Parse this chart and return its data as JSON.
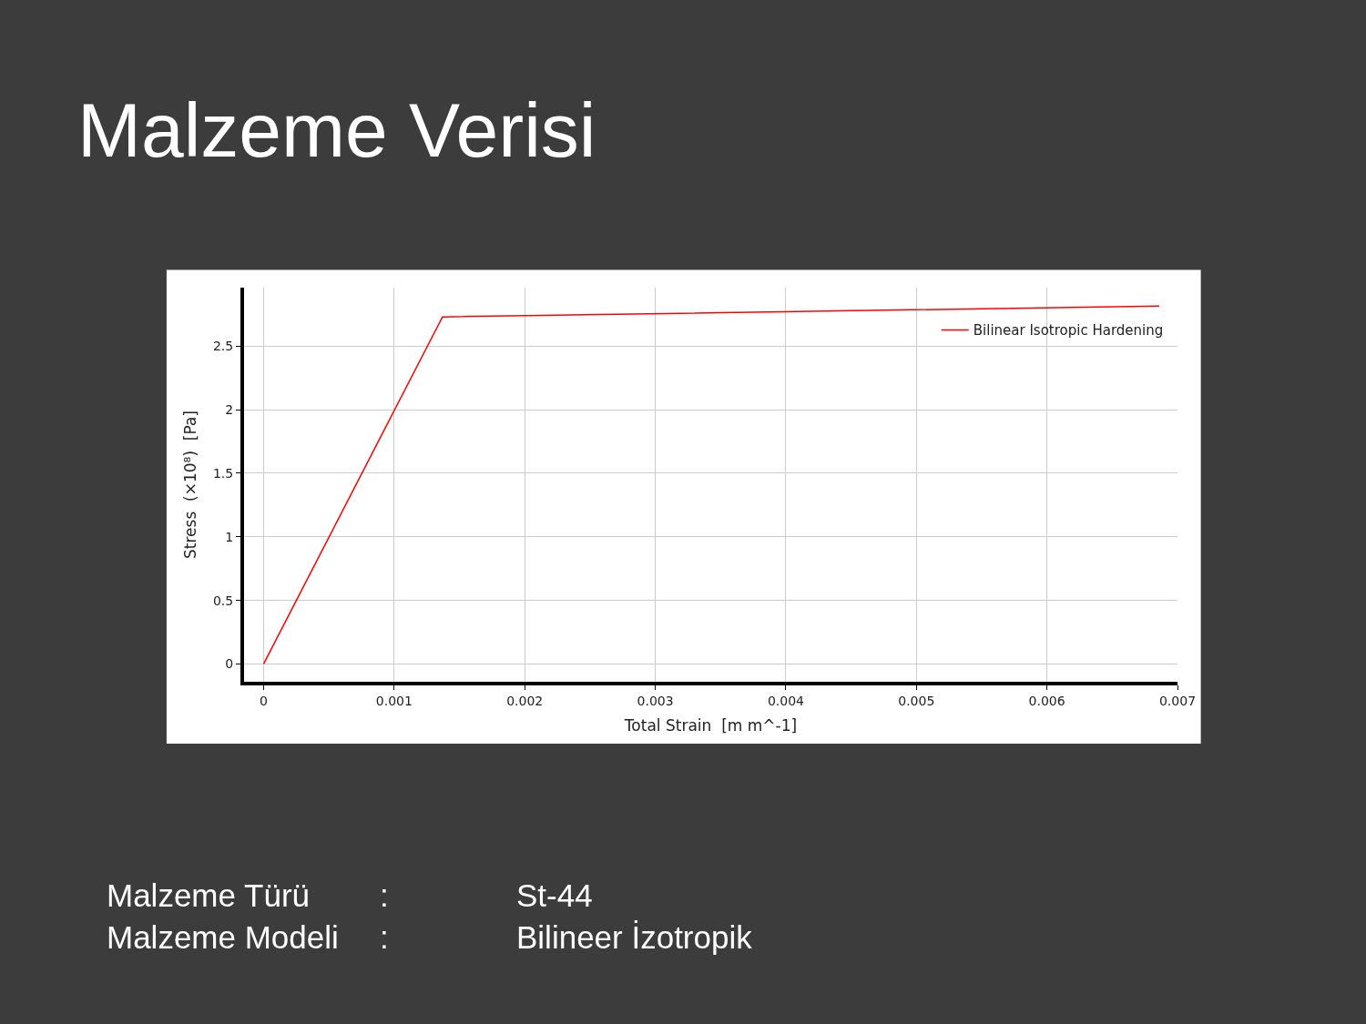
{
  "chart_data": {
    "type": "line",
    "title": "Malzeme Verisi",
    "xlabel": "Total Strain  [m m^-1]",
    "ylabel": "Stress  (×10⁸)  [Pa]",
    "series": [
      {
        "name": "Bilinear Isotropic Hardening",
        "color": "#ff0000",
        "x": [
          0,
          0.00137,
          0.00686
        ],
        "values": [
          0,
          2.73,
          2.815
        ]
      }
    ],
    "xlim": [
      -0.00015,
      0.007
    ],
    "ylim": [
      -0.14,
      2.96
    ],
    "xticks": [
      0,
      0.001,
      0.002,
      0.003,
      0.004,
      0.005,
      0.006,
      0.007
    ],
    "yticks": [
      0,
      0.5,
      1,
      1.5,
      2,
      2.5
    ],
    "grid": true,
    "legend": "top right",
    "marker": "none",
    "line_style": "solid",
    "annotations": [
      "Malzeme Türü",
      ":",
      "St-44",
      "Malzeme Modeli",
      ":",
      "Bilineer İzotropik"
    ]
  }
}
